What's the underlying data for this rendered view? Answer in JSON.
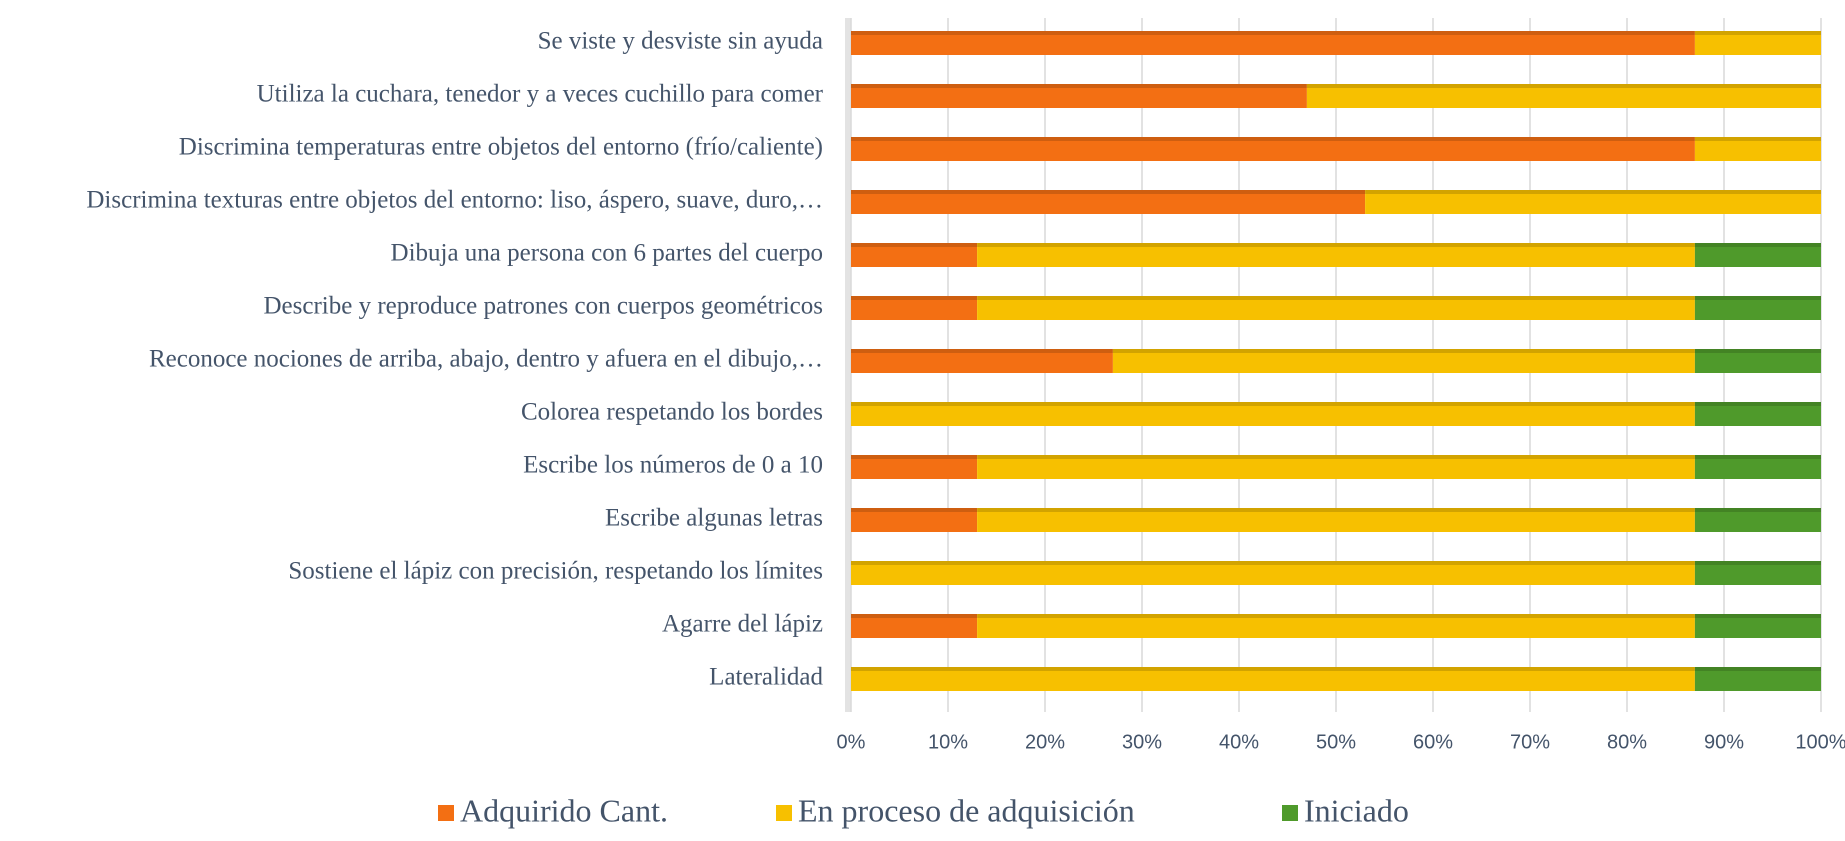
{
  "chart_data": {
    "type": "stacked_bar_horizontal",
    "categories": [
      "Se viste y desviste sin ayuda",
      "Utiliza la cuchara, tenedor y a veces cuchillo para comer",
      "Discrimina temperaturas entre objetos del entorno (frío/caliente)",
      "Discrimina texturas entre objetos del entorno: liso, áspero, suave, duro,…",
      "Dibuja una persona con 6 partes del cuerpo",
      "Describe y reproduce patrones con cuerpos geométricos",
      "Reconoce nociones de arriba, abajo, dentro y afuera en el dibujo,…",
      "Colorea respetando los bordes",
      "Escribe los números de 0 a 10",
      "Escribe algunas letras",
      "Sostiene el lápiz con precisión, respetando los límites",
      "Agarre del lápiz",
      "Lateralidad"
    ],
    "series": [
      {
        "name": "Adquirido Cant.",
        "color": "#f36f13",
        "values": [
          87,
          47,
          87,
          53,
          13,
          13,
          27,
          0,
          13,
          13,
          0,
          13,
          0
        ]
      },
      {
        "name": "En proceso de adquisición",
        "color": "#f7c000",
        "values": [
          13,
          53,
          13,
          47,
          74,
          74,
          60,
          87,
          74,
          74,
          87,
          74,
          87
        ]
      },
      {
        "name": "Iniciado",
        "color": "#4f9a2b",
        "values": [
          0,
          0,
          0,
          0,
          13,
          13,
          13,
          13,
          13,
          13,
          13,
          13,
          13
        ]
      }
    ],
    "xlim": [
      0,
      100
    ],
    "xticks": [
      {
        "value": 0,
        "label": "0%"
      },
      {
        "value": 10,
        "label": "10%"
      },
      {
        "value": 20,
        "label": "20%"
      },
      {
        "value": 30,
        "label": "30%"
      },
      {
        "value": 40,
        "label": "40%"
      },
      {
        "value": 50,
        "label": "50%"
      },
      {
        "value": 60,
        "label": "60%"
      },
      {
        "value": 70,
        "label": "70%"
      },
      {
        "value": 80,
        "label": "80%"
      },
      {
        "value": 90,
        "label": "90%"
      },
      {
        "value": 100,
        "label": "100%"
      }
    ],
    "grid": true,
    "legend": "bottom"
  }
}
